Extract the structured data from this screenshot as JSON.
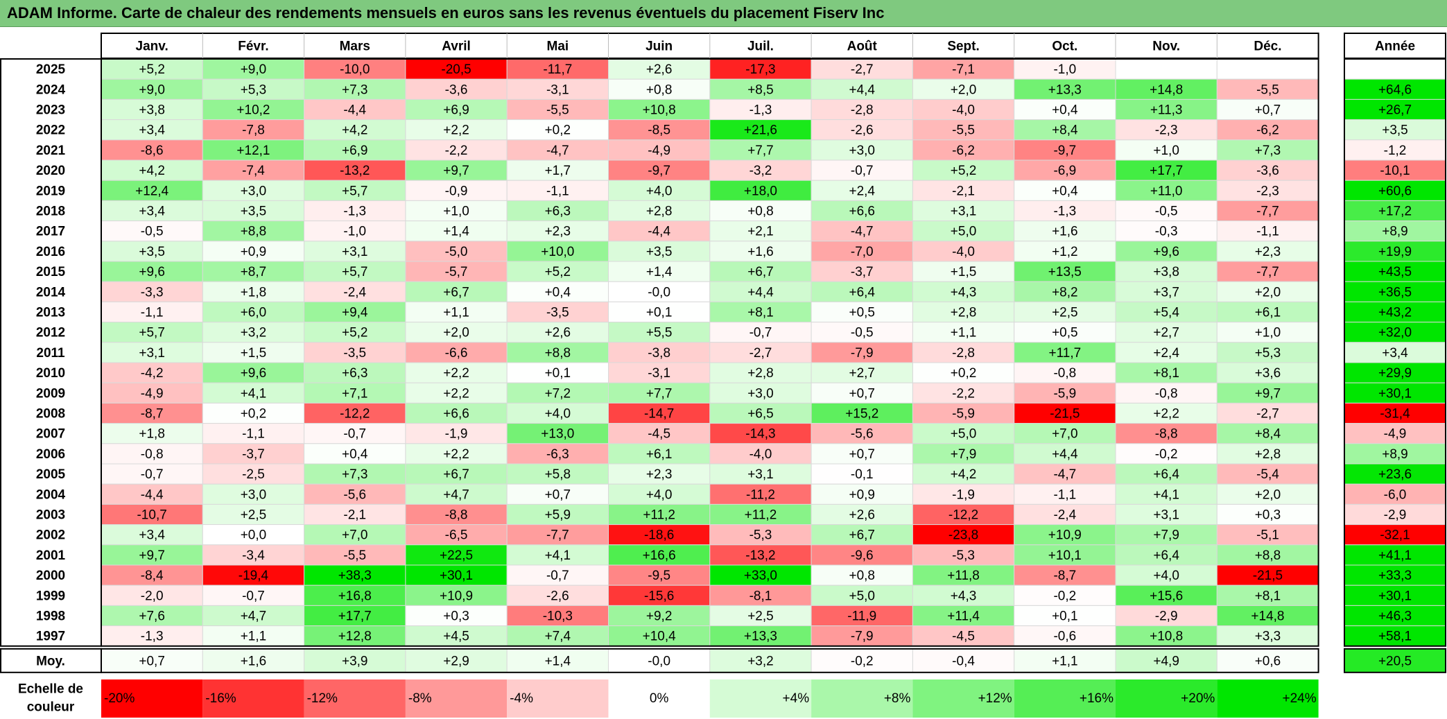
{
  "title": "ADAM Informe. Carte de chaleur des rendements mensuels en euros sans les revenus éventuels du placement Fiserv Inc",
  "chart_data": {
    "type": "heatmap",
    "title": "ADAM Informe. Carte de chaleur des rendements mensuels en euros sans les revenus éventuels du placement Fiserv Inc",
    "months": [
      "Janv.",
      "Févr.",
      "Mars",
      "Avril",
      "Mai",
      "Juin",
      "Juil.",
      "Août",
      "Sept.",
      "Oct.",
      "Nov.",
      "Déc."
    ],
    "year_header": "Année",
    "rows": [
      {
        "year": "2025",
        "values": [
          "+5,2",
          "+9,0",
          "-10,0",
          "-20,5",
          "-11,7",
          "+2,6",
          "-17,3",
          "-2,7",
          "-7,1",
          "-1,0",
          "",
          ""
        ],
        "annual": ""
      },
      {
        "year": "2024",
        "values": [
          "+9,0",
          "+5,3",
          "+7,3",
          "-3,6",
          "-3,1",
          "+0,8",
          "+8,5",
          "+4,4",
          "+2,0",
          "+13,3",
          "+14,8",
          "-5,5"
        ],
        "annual": "+64,6"
      },
      {
        "year": "2023",
        "values": [
          "+3,8",
          "+10,2",
          "-4,4",
          "+6,9",
          "-5,5",
          "+10,8",
          "-1,3",
          "-2,8",
          "-4,0",
          "+0,4",
          "+11,3",
          "+0,7"
        ],
        "annual": "+26,7"
      },
      {
        "year": "2022",
        "values": [
          "+3,4",
          "-7,8",
          "+4,2",
          "+2,2",
          "+0,2",
          "-8,5",
          "+21,6",
          "-2,6",
          "-5,5",
          "+8,4",
          "-2,3",
          "-6,2"
        ],
        "annual": "+3,5"
      },
      {
        "year": "2021",
        "values": [
          "-8,6",
          "+12,1",
          "+6,9",
          "-2,2",
          "-4,7",
          "-4,9",
          "+7,7",
          "+3,0",
          "-6,2",
          "-9,7",
          "+1,0",
          "+7,3"
        ],
        "annual": "-1,2"
      },
      {
        "year": "2020",
        "values": [
          "+4,2",
          "-7,4",
          "-13,2",
          "+9,7",
          "+1,7",
          "-9,7",
          "-3,2",
          "-0,7",
          "+5,2",
          "-6,9",
          "+17,7",
          "-3,6"
        ],
        "annual": "-10,1"
      },
      {
        "year": "2019",
        "values": [
          "+12,4",
          "+3,0",
          "+5,7",
          "-0,9",
          "-1,1",
          "+4,0",
          "+18,0",
          "+2,4",
          "-2,1",
          "+0,4",
          "+11,0",
          "-2,3"
        ],
        "annual": "+60,6"
      },
      {
        "year": "2018",
        "values": [
          "+3,4",
          "+3,5",
          "-1,3",
          "+1,0",
          "+6,3",
          "+2,8",
          "+0,8",
          "+6,6",
          "+3,1",
          "-1,3",
          "-0,5",
          "-7,7"
        ],
        "annual": "+17,2"
      },
      {
        "year": "2017",
        "values": [
          "-0,5",
          "+8,8",
          "-1,0",
          "+1,4",
          "+2,3",
          "-4,4",
          "+2,1",
          "-4,7",
          "+5,0",
          "+1,6",
          "-0,3",
          "-1,1"
        ],
        "annual": "+8,9"
      },
      {
        "year": "2016",
        "values": [
          "+3,5",
          "+0,9",
          "+3,1",
          "-5,0",
          "+10,0",
          "+3,5",
          "+1,6",
          "-7,0",
          "-4,0",
          "+1,2",
          "+9,6",
          "+2,3"
        ],
        "annual": "+19,9"
      },
      {
        "year": "2015",
        "values": [
          "+9,6",
          "+8,7",
          "+5,7",
          "-5,7",
          "+5,2",
          "+1,4",
          "+6,7",
          "-3,7",
          "+1,5",
          "+13,5",
          "+3,8",
          "-7,7"
        ],
        "annual": "+43,5"
      },
      {
        "year": "2014",
        "values": [
          "-3,3",
          "+1,8",
          "-2,4",
          "+6,7",
          "+0,4",
          "-0,0",
          "+4,4",
          "+6,4",
          "+4,3",
          "+8,2",
          "+3,7",
          "+2,0"
        ],
        "annual": "+36,5"
      },
      {
        "year": "2013",
        "values": [
          "-1,1",
          "+6,0",
          "+9,4",
          "+1,1",
          "-3,5",
          "+0,1",
          "+8,1",
          "+0,5",
          "+2,8",
          "+2,5",
          "+5,4",
          "+6,1"
        ],
        "annual": "+43,2"
      },
      {
        "year": "2012",
        "values": [
          "+5,7",
          "+3,2",
          "+5,2",
          "+2,0",
          "+2,6",
          "+5,5",
          "-0,7",
          "-0,5",
          "+1,1",
          "+0,5",
          "+2,7",
          "+1,0"
        ],
        "annual": "+32,0"
      },
      {
        "year": "2011",
        "values": [
          "+3,1",
          "+1,5",
          "-3,5",
          "-6,6",
          "+8,8",
          "-3,8",
          "-2,7",
          "-7,9",
          "-2,8",
          "+11,7",
          "+2,4",
          "+5,3"
        ],
        "annual": "+3,4"
      },
      {
        "year": "2010",
        "values": [
          "-4,2",
          "+9,6",
          "+6,3",
          "+2,2",
          "+0,1",
          "-3,1",
          "+2,8",
          "+2,7",
          "+0,2",
          "-0,8",
          "+8,1",
          "+3,6"
        ],
        "annual": "+29,9"
      },
      {
        "year": "2009",
        "values": [
          "-4,9",
          "+4,1",
          "+7,1",
          "+2,2",
          "+7,2",
          "+7,7",
          "+3,0",
          "+0,7",
          "-2,2",
          "-5,9",
          "-0,8",
          "+9,7"
        ],
        "annual": "+30,1"
      },
      {
        "year": "2008",
        "values": [
          "-8,7",
          "+0,2",
          "-12,2",
          "+6,6",
          "+4,0",
          "-14,7",
          "+6,5",
          "+15,2",
          "-5,9",
          "-21,5",
          "+2,2",
          "-2,7"
        ],
        "annual": "-31,4"
      },
      {
        "year": "2007",
        "values": [
          "+1,8",
          "-1,1",
          "-0,7",
          "-1,9",
          "+13,0",
          "-4,5",
          "-14,3",
          "-5,6",
          "+5,0",
          "+7,0",
          "-8,8",
          "+8,4"
        ],
        "annual": "-4,9"
      },
      {
        "year": "2006",
        "values": [
          "-0,8",
          "-3,7",
          "+0,4",
          "+2,2",
          "-6,3",
          "+6,1",
          "-4,0",
          "+0,7",
          "+7,9",
          "+4,4",
          "-0,2",
          "+2,8"
        ],
        "annual": "+8,9"
      },
      {
        "year": "2005",
        "values": [
          "-0,7",
          "-2,5",
          "+7,3",
          "+6,7",
          "+5,8",
          "+2,3",
          "+3,1",
          "-0,1",
          "+4,2",
          "-4,7",
          "+6,4",
          "-5,4"
        ],
        "annual": "+23,6"
      },
      {
        "year": "2004",
        "values": [
          "-4,4",
          "+3,0",
          "-5,6",
          "+4,7",
          "+0,7",
          "+4,0",
          "-11,2",
          "+0,9",
          "-1,9",
          "-1,1",
          "+4,1",
          "+2,0"
        ],
        "annual": "-6,0"
      },
      {
        "year": "2003",
        "values": [
          "-10,7",
          "+2,5",
          "-2,1",
          "-8,8",
          "+5,9",
          "+11,2",
          "+11,2",
          "+2,6",
          "-12,2",
          "-2,4",
          "+3,1",
          "+0,3"
        ],
        "annual": "-2,9"
      },
      {
        "year": "2002",
        "values": [
          "+3,4",
          "+0,0",
          "+7,0",
          "-6,5",
          "-7,7",
          "-18,6",
          "-5,3",
          "+6,7",
          "-23,8",
          "+10,9",
          "+7,9",
          "-5,1"
        ],
        "annual": "-32,1"
      },
      {
        "year": "2001",
        "values": [
          "+9,7",
          "-3,4",
          "-5,5",
          "+22,5",
          "+4,1",
          "+16,6",
          "-13,2",
          "-9,6",
          "-5,3",
          "+10,1",
          "+6,4",
          "+8,8"
        ],
        "annual": "+41,1"
      },
      {
        "year": "2000",
        "values": [
          "-8,4",
          "-19,4",
          "+38,3",
          "+30,1",
          "-0,7",
          "-9,5",
          "+33,0",
          "+0,8",
          "+11,8",
          "-8,7",
          "+4,0",
          "-21,5"
        ],
        "annual": "+33,3"
      },
      {
        "year": "1999",
        "values": [
          "-2,0",
          "-0,7",
          "+16,8",
          "+10,9",
          "-2,6",
          "-15,6",
          "-8,1",
          "+5,0",
          "+4,3",
          "-0,2",
          "+15,6",
          "+8,1"
        ],
        "annual": "+30,1"
      },
      {
        "year": "1998",
        "values": [
          "+7,6",
          "+4,7",
          "+17,7",
          "+0,3",
          "-10,3",
          "+9,2",
          "+2,5",
          "-11,9",
          "+11,4",
          "+0,1",
          "-2,9",
          "+14,8"
        ],
        "annual": "+46,3"
      },
      {
        "year": "1997",
        "values": [
          "-1,3",
          "+1,1",
          "+12,8",
          "+4,5",
          "+7,4",
          "+10,4",
          "+13,3",
          "-7,9",
          "-4,5",
          "-0,6",
          "+10,8",
          "+3,3"
        ],
        "annual": "+58,1"
      }
    ],
    "average": {
      "label": "Moy.",
      "values": [
        "+0,7",
        "+1,6",
        "+3,9",
        "+2,9",
        "+1,4",
        "-0,0",
        "+3,2",
        "-0,2",
        "-0,4",
        "+1,1",
        "+4,9",
        "+0,6"
      ],
      "annual": "+20,5"
    },
    "scale": {
      "label_line1": "Echelle de",
      "label_line2": "couleur",
      "steps": [
        "-20%",
        "-16%",
        "-12%",
        "-8%",
        "-4%",
        "0%",
        "+4%",
        "+8%",
        "+12%",
        "+16%",
        "+20%",
        "+24%"
      ],
      "step_values": [
        -20,
        -16,
        -12,
        -8,
        -4,
        0,
        4,
        8,
        12,
        16,
        20,
        24
      ]
    },
    "colors": {
      "negative": "#ff0000",
      "neutral": "#ffffff",
      "positive": "#00e600",
      "title_bg": "#7fc97f"
    },
    "color_range": {
      "min": -20,
      "max": 24
    }
  }
}
